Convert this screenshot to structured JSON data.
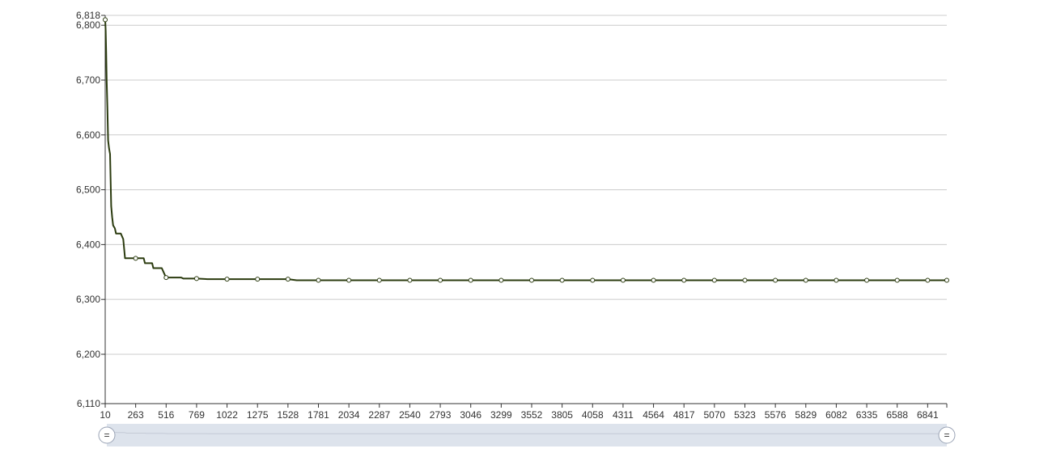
{
  "chart_data": {
    "type": "line",
    "title": "",
    "xlabel": "",
    "ylabel": "",
    "x_tick_labels": [
      "10",
      "263",
      "516",
      "769",
      "1022",
      "1275",
      "1528",
      "1781",
      "2034",
      "2287",
      "2540",
      "2793",
      "3046",
      "3299",
      "3552",
      "3805",
      "4058",
      "4311",
      "4564",
      "4817",
      "5070",
      "5323",
      "5576",
      "5829",
      "6082",
      "6335",
      "6588",
      "6841"
    ],
    "y_tick_labels": [
      "6,110",
      "6,200",
      "6,300",
      "6,400",
      "6,500",
      "6,600",
      "6,700",
      "6,800",
      "6,818"
    ],
    "xlim": [
      10,
      7000
    ],
    "ylim": [
      6110,
      6818
    ],
    "grid": true,
    "legend": "none",
    "colors": {
      "line": "#2b3b0f",
      "grid": "#cccccc",
      "axis": "#333333",
      "marker_fill": "#ffffff",
      "zoom_band": "#dde3ec"
    },
    "series": [
      {
        "values": [
          [
            10,
            6810
          ],
          [
            14,
            6790
          ],
          [
            18,
            6750
          ],
          [
            22,
            6700
          ],
          [
            28,
            6650
          ],
          [
            34,
            6590
          ],
          [
            42,
            6575
          ],
          [
            50,
            6565
          ],
          [
            60,
            6470
          ],
          [
            68,
            6450
          ],
          [
            76,
            6435
          ],
          [
            90,
            6430
          ],
          [
            100,
            6420
          ],
          [
            140,
            6420
          ],
          [
            160,
            6410
          ],
          [
            175,
            6375
          ],
          [
            263,
            6375
          ],
          [
            330,
            6375
          ],
          [
            340,
            6366
          ],
          [
            400,
            6366
          ],
          [
            410,
            6357
          ],
          [
            480,
            6357
          ],
          [
            505,
            6345
          ],
          [
            516,
            6340
          ],
          [
            560,
            6340
          ],
          [
            640,
            6340
          ],
          [
            660,
            6338
          ],
          [
            769,
            6338
          ],
          [
            860,
            6337
          ],
          [
            1022,
            6337
          ],
          [
            1275,
            6337
          ],
          [
            1528,
            6337
          ],
          [
            1600,
            6335
          ],
          [
            1781,
            6335
          ],
          [
            2034,
            6335
          ],
          [
            2287,
            6335
          ],
          [
            2540,
            6335
          ],
          [
            2793,
            6335
          ],
          [
            3046,
            6335
          ],
          [
            3299,
            6335
          ],
          [
            3552,
            6335
          ],
          [
            3805,
            6335
          ],
          [
            4058,
            6335
          ],
          [
            4311,
            6335
          ],
          [
            4564,
            6335
          ],
          [
            4817,
            6335
          ],
          [
            5070,
            6335
          ],
          [
            5323,
            6335
          ],
          [
            5576,
            6335
          ],
          [
            5829,
            6335
          ],
          [
            6082,
            6335
          ],
          [
            6335,
            6335
          ],
          [
            6588,
            6335
          ],
          [
            6841,
            6335
          ],
          [
            7000,
            6335
          ]
        ],
        "markers": [
          [
            10,
            6810
          ],
          [
            263,
            6375
          ],
          [
            516,
            6340
          ],
          [
            769,
            6338
          ],
          [
            1022,
            6337
          ],
          [
            1275,
            6337
          ],
          [
            1528,
            6337
          ],
          [
            1781,
            6335
          ],
          [
            2034,
            6335
          ],
          [
            2287,
            6335
          ],
          [
            2540,
            6335
          ],
          [
            2793,
            6335
          ],
          [
            3046,
            6335
          ],
          [
            3299,
            6335
          ],
          [
            3552,
            6335
          ],
          [
            3805,
            6335
          ],
          [
            4058,
            6335
          ],
          [
            4311,
            6335
          ],
          [
            4564,
            6335
          ],
          [
            4817,
            6335
          ],
          [
            5070,
            6335
          ],
          [
            5323,
            6335
          ],
          [
            5576,
            6335
          ],
          [
            5829,
            6335
          ],
          [
            6082,
            6335
          ],
          [
            6335,
            6335
          ],
          [
            6588,
            6335
          ],
          [
            6841,
            6335
          ],
          [
            7000,
            6335
          ]
        ]
      }
    ],
    "zoom_slider": {
      "start_fraction": 0,
      "end_fraction": 1,
      "handle_glyph": "="
    }
  }
}
